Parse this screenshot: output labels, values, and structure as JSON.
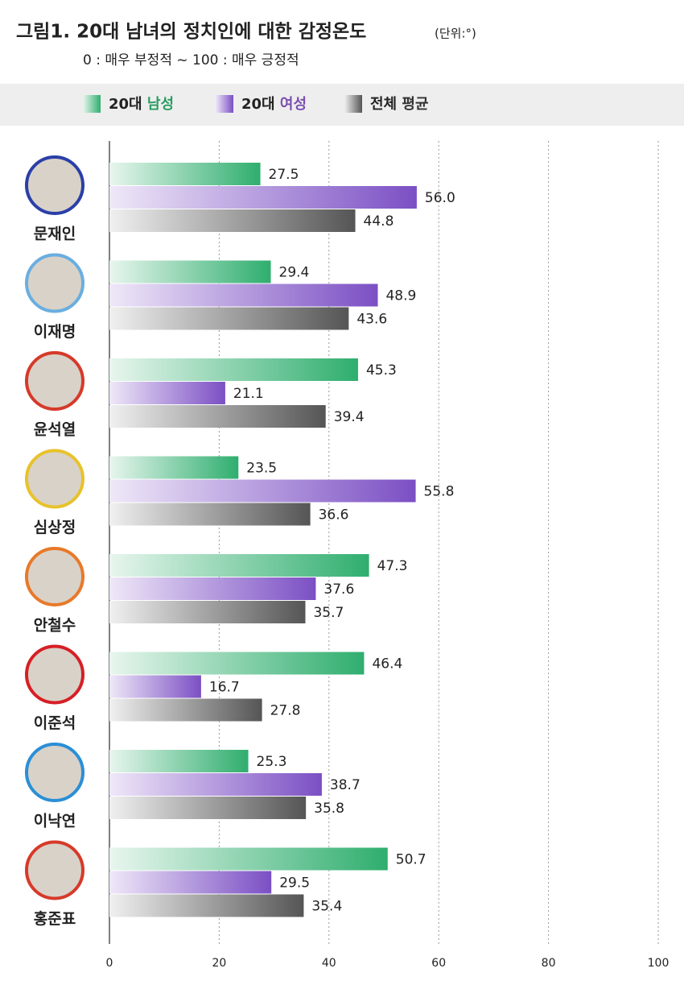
{
  "chart_data": {
    "type": "bar",
    "orientation": "horizontal",
    "title": "그림1. 20대 남녀의 정치인에 대한 감정온도",
    "unit": "(단위:°)",
    "subtitle": "0 : 매우 부정적 ~ 100 : 매우 긍정적",
    "categories": [
      "문재인",
      "이재명",
      "윤석열",
      "심상정",
      "안철수",
      "이준석",
      "이낙연",
      "홍준표"
    ],
    "series": [
      {
        "name": "20대 남성",
        "color": "#2fae6e",
        "values": [
          27.5,
          29.4,
          45.3,
          23.5,
          47.3,
          46.4,
          25.3,
          50.7
        ],
        "value_labels": [
          "27.5",
          "29.4",
          "45.3",
          "23.5",
          "47.3",
          "46.4",
          "25.3",
          "50.7"
        ]
      },
      {
        "name": "20대 여성",
        "color": "#7b4fc4",
        "values": [
          56,
          48.9,
          21.1,
          55.8,
          37.6,
          16.7,
          38.7,
          29.5
        ],
        "value_labels": [
          "56.0",
          "48.9",
          "21.1",
          "55.8",
          "37.6",
          "16.7",
          "38.7",
          "29.5"
        ]
      },
      {
        "name": "전체 평균",
        "color": "#555555",
        "values": [
          44.8,
          43.6,
          39.4,
          36.6,
          35.7,
          27.8,
          35.8,
          35.4
        ],
        "value_labels": [
          "44.8",
          "43.6",
          "39.4",
          "36.6",
          "35.7",
          "27.8",
          "35.8",
          "35.4"
        ]
      }
    ],
    "xlim": [
      0,
      100
    ],
    "xticks": [
      0,
      20,
      40,
      60,
      80,
      100
    ],
    "grid": true
  }
}
